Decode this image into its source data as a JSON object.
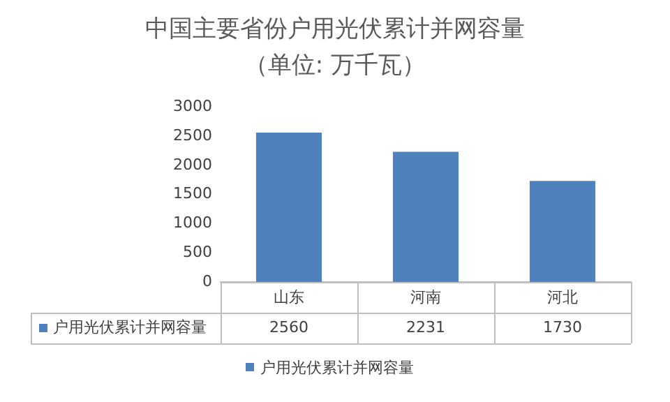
{
  "chart_data": {
    "type": "bar",
    "title": "中国主要省份户用光伏累计并网容量（单位: 万千瓦）",
    "categories": [
      "山东",
      "河南",
      "河北"
    ],
    "series": [
      {
        "name": "户用光伏累计并网容量",
        "color": "#4f81bd",
        "values": [
          2560,
          2231,
          1730
        ]
      }
    ],
    "ylim": [
      0,
      3000
    ],
    "yticks": [
      0,
      500,
      1000,
      1500,
      2000,
      2500,
      3000
    ],
    "grid": false,
    "legend": "bottom",
    "data_labels": true
  }
}
